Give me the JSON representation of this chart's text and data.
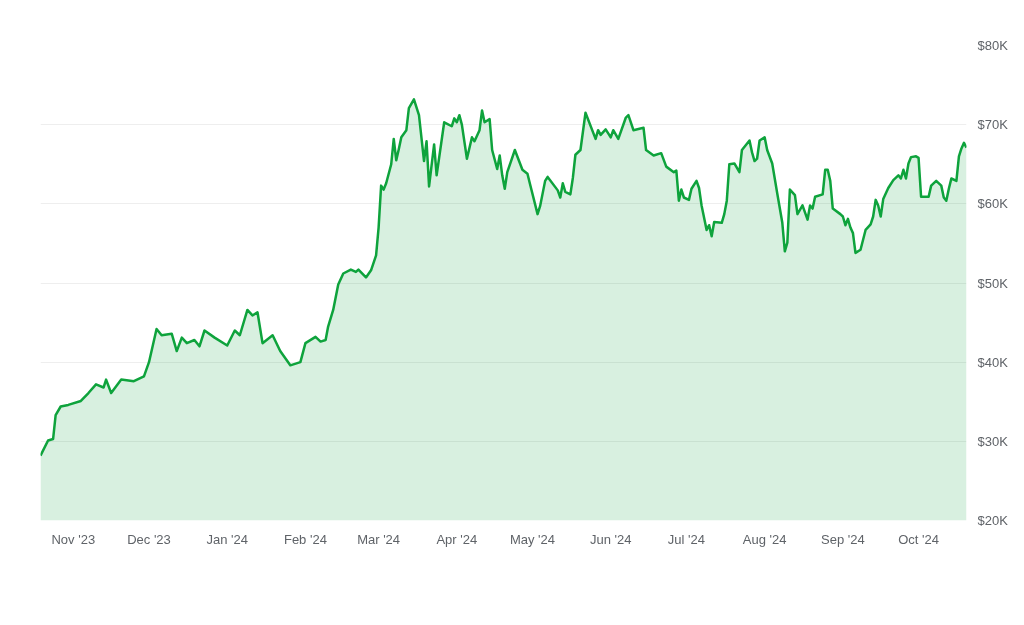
{
  "chart_data": {
    "type": "area",
    "grid": "y",
    "xlim": [
      "2023-10-19",
      "2024-10-20"
    ],
    "xticks": [
      {
        "value": "2023-11-01",
        "label": "Nov '23"
      },
      {
        "value": "2023-12-01",
        "label": "Dec '23"
      },
      {
        "value": "2024-01-01",
        "label": "Jan '24"
      },
      {
        "value": "2024-02-01",
        "label": "Feb '24"
      },
      {
        "value": "2024-03-01",
        "label": "Mar '24"
      },
      {
        "value": "2024-04-01",
        "label": "Apr '24"
      },
      {
        "value": "2024-05-01",
        "label": "May '24"
      },
      {
        "value": "2024-06-01",
        "label": "Jun '24"
      },
      {
        "value": "2024-07-01",
        "label": "Jul '24"
      },
      {
        "value": "2024-08-01",
        "label": "Aug '24"
      },
      {
        "value": "2024-09-01",
        "label": "Sep '24"
      },
      {
        "value": "2024-10-01",
        "label": "Oct '24"
      }
    ],
    "ylim": [
      20000,
      80000
    ],
    "yticks": [
      {
        "value": 20000,
        "label": "$20K"
      },
      {
        "value": 30000,
        "label": "$30K"
      },
      {
        "value": 40000,
        "label": "$40K"
      },
      {
        "value": 50000,
        "label": "$50K"
      },
      {
        "value": 60000,
        "label": "$60K"
      },
      {
        "value": 70000,
        "label": "$70K"
      },
      {
        "value": 80000,
        "label": "$80K"
      }
    ],
    "series": [
      {
        "color": "#0ea33c",
        "x": [
          "2023-10-19",
          "2023-10-22",
          "2023-10-24",
          "2023-10-25",
          "2023-10-27",
          "2023-10-30",
          "2023-11-04",
          "2023-11-07",
          "2023-11-10",
          "2023-11-13",
          "2023-11-14",
          "2023-11-16",
          "2023-11-20",
          "2023-11-25",
          "2023-11-29",
          "2023-12-01",
          "2023-12-04",
          "2023-12-06",
          "2023-12-10",
          "2023-12-12",
          "2023-12-14",
          "2023-12-16",
          "2023-12-19",
          "2023-12-21",
          "2023-12-23",
          "2023-12-27",
          "2024-01-01",
          "2024-01-04",
          "2024-01-06",
          "2024-01-09",
          "2024-01-11",
          "2024-01-13",
          "2024-01-15",
          "2024-01-19",
          "2024-01-22",
          "2024-01-26",
          "2024-01-30",
          "2024-02-01",
          "2024-02-05",
          "2024-02-07",
          "2024-02-09",
          "2024-02-10",
          "2024-02-12",
          "2024-02-14",
          "2024-02-16",
          "2024-02-19",
          "2024-02-21",
          "2024-02-22",
          "2024-02-25",
          "2024-02-27",
          "2024-02-29",
          "2024-03-01",
          "2024-03-02",
          "2024-03-03",
          "2024-03-04",
          "2024-03-06",
          "2024-03-07",
          "2024-03-08",
          "2024-03-09",
          "2024-03-10",
          "2024-03-12",
          "2024-03-13",
          "2024-03-15",
          "2024-03-17",
          "2024-03-19",
          "2024-03-20",
          "2024-03-21",
          "2024-03-23",
          "2024-03-24",
          "2024-03-27",
          "2024-03-30",
          "2024-03-31",
          "2024-04-01",
          "2024-04-02",
          "2024-04-03",
          "2024-04-05",
          "2024-04-07",
          "2024-04-08",
          "2024-04-10",
          "2024-04-11",
          "2024-04-12",
          "2024-04-14",
          "2024-04-15",
          "2024-04-17",
          "2024-04-18",
          "2024-04-19",
          "2024-04-20",
          "2024-04-21",
          "2024-04-24",
          "2024-04-27",
          "2024-04-29",
          "2024-04-30",
          "2024-05-03",
          "2024-05-04",
          "2024-05-06",
          "2024-05-07",
          "2024-05-11",
          "2024-05-12",
          "2024-05-13",
          "2024-05-14",
          "2024-05-16",
          "2024-05-17",
          "2024-05-18",
          "2024-05-20",
          "2024-05-22",
          "2024-05-26",
          "2024-05-27",
          "2024-05-28",
          "2024-05-30",
          "2024-06-01",
          "2024-06-02",
          "2024-06-04",
          "2024-06-07",
          "2024-06-08",
          "2024-06-10",
          "2024-06-14",
          "2024-06-15",
          "2024-06-18",
          "2024-06-21",
          "2024-06-23",
          "2024-06-26",
          "2024-06-27",
          "2024-06-28",
          "2024-06-29",
          "2024-06-30",
          "2024-07-02",
          "2024-07-03",
          "2024-07-05",
          "2024-07-06",
          "2024-07-07",
          "2024-07-09",
          "2024-07-10",
          "2024-07-11",
          "2024-07-12",
          "2024-07-15",
          "2024-07-16",
          "2024-07-17",
          "2024-07-18",
          "2024-07-20",
          "2024-07-22",
          "2024-07-23",
          "2024-07-26",
          "2024-07-27",
          "2024-07-28",
          "2024-07-29",
          "2024-07-30",
          "2024-08-01",
          "2024-08-02",
          "2024-08-04",
          "2024-08-06",
          "2024-08-08",
          "2024-08-09",
          "2024-08-10",
          "2024-08-11",
          "2024-08-13",
          "2024-08-14",
          "2024-08-16",
          "2024-08-18",
          "2024-08-19",
          "2024-08-20",
          "2024-08-21",
          "2024-08-24",
          "2024-08-25",
          "2024-08-26",
          "2024-08-27",
          "2024-08-28",
          "2024-08-31",
          "2024-09-01",
          "2024-09-02",
          "2024-09-03",
          "2024-09-04",
          "2024-09-05",
          "2024-09-06",
          "2024-09-08",
          "2024-09-10",
          "2024-09-12",
          "2024-09-13",
          "2024-09-14",
          "2024-09-15",
          "2024-09-16",
          "2024-09-17",
          "2024-09-19",
          "2024-09-21",
          "2024-09-23",
          "2024-09-24",
          "2024-09-25",
          "2024-09-26",
          "2024-09-27",
          "2024-09-28",
          "2024-09-30",
          "2024-10-01",
          "2024-10-02",
          "2024-10-05",
          "2024-10-06",
          "2024-10-08",
          "2024-10-10",
          "2024-10-11",
          "2024-10-12",
          "2024-10-13",
          "2024-10-14",
          "2024-10-16",
          "2024-10-17",
          "2024-10-18",
          "2024-10-19",
          "2024-10-20"
        ],
        "values": [
          28200,
          30100,
          30300,
          33300,
          34400,
          34600,
          35100,
          36100,
          37200,
          36800,
          37800,
          36100,
          37800,
          37600,
          38200,
          40000,
          44200,
          43400,
          43600,
          41400,
          43100,
          42400,
          42800,
          42000,
          44000,
          43100,
          42100,
          44000,
          43400,
          46600,
          45900,
          46300,
          42400,
          43400,
          41400,
          39600,
          40000,
          42400,
          43200,
          42600,
          42800,
          44500,
          46600,
          49800,
          51200,
          51700,
          51400,
          51700,
          50700,
          51600,
          53500,
          57000,
          62300,
          61800,
          62600,
          65000,
          68200,
          65500,
          66900,
          68400,
          69300,
          72100,
          73200,
          71200,
          65400,
          67900,
          62200,
          67500,
          63600,
          70300,
          69800,
          70800,
          70300,
          71200,
          70000,
          65700,
          68400,
          67900,
          69300,
          71800,
          70300,
          70700,
          66800,
          64400,
          66100,
          63600,
          61900,
          64000,
          66800,
          64300,
          63800,
          62500,
          58700,
          59700,
          62900,
          63400,
          61700,
          60800,
          62600,
          61500,
          61200,
          63300,
          66200,
          66800,
          71500,
          68200,
          69300,
          68700,
          69400,
          68400,
          69300,
          68200,
          70900,
          71200,
          69300,
          69600,
          66800,
          66100,
          66400,
          64700,
          64000,
          64200,
          60400,
          61800,
          60800,
          60500,
          61900,
          62900,
          62000,
          59800,
          56700,
          57300,
          55900,
          57700,
          57600,
          58700,
          60400,
          65000,
          65100,
          64000,
          66800,
          68000,
          66500,
          65400,
          65700,
          68000,
          68400,
          66800,
          65100,
          61300,
          57600,
          54000,
          55100,
          61800,
          61100,
          58700,
          59800,
          58000,
          59800,
          59400,
          60900,
          61200,
          64300,
          64300,
          62900,
          59400,
          58700,
          58400,
          57300,
          58100,
          57000,
          56300,
          53800,
          54200,
          56700,
          57400,
          58400,
          60500,
          59800,
          58400,
          60600,
          62000,
          63000,
          63600,
          63200,
          64300,
          63200,
          65100,
          65900,
          66000,
          65800,
          60900,
          60900,
          62300,
          62900,
          62300,
          60800,
          60400,
          61900,
          63200,
          62900,
          66000,
          67000,
          67700,
          67100
        ]
      }
    ]
  }
}
